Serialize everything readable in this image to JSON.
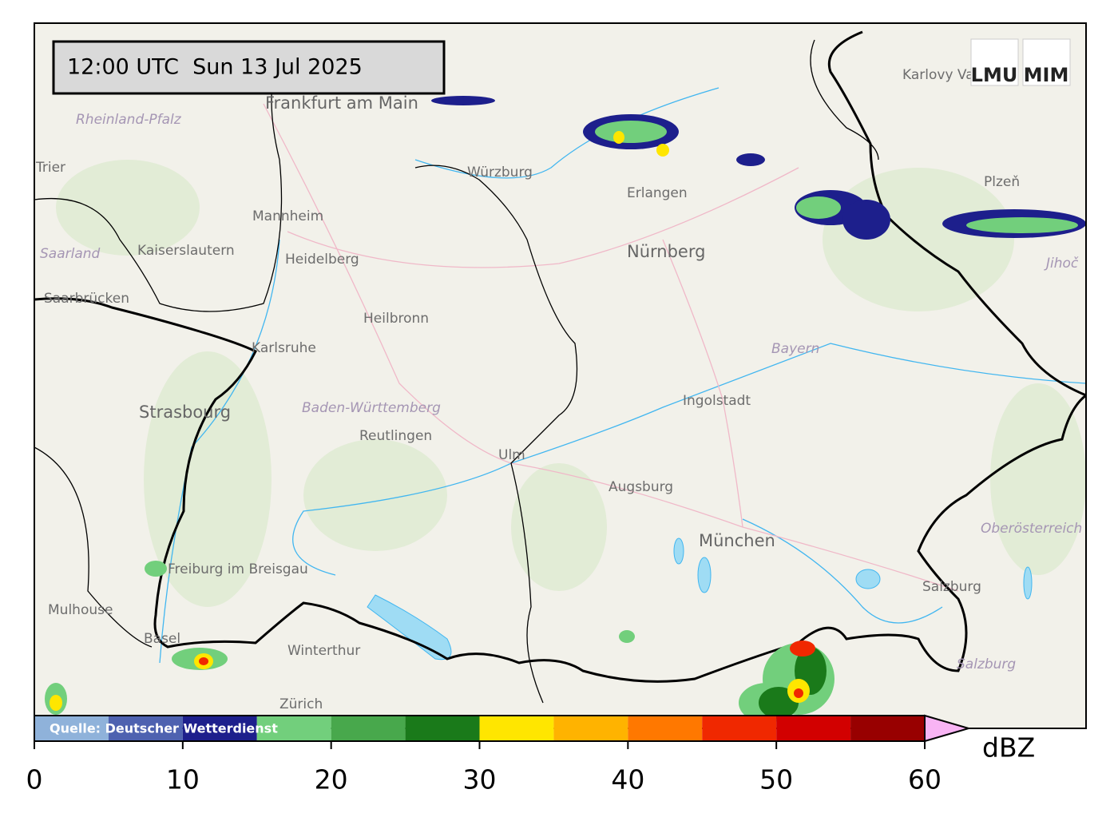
{
  "timestamp": "12:00 UTC  Sun 13 Jul 2025",
  "logos": [
    "LMU",
    "MIM"
  ],
  "source": "Quelle: Deutscher Wetterdienst",
  "places": [
    "Frankfurt am Main",
    "Rheinland-Pfalz",
    "Trier",
    "Mannheim",
    "Kaiserslautern",
    "Heidelberg",
    "Saarland",
    "Saarbrücken",
    "Karlsruhe",
    "Heilbronn",
    "Würzburg",
    "Erlangen",
    "Nürnberg",
    "Karlovy Vary",
    "Plzeň",
    "Jihoč",
    "Bayern",
    "Ingolstadt",
    "Strasbourg",
    "Baden-Württemberg",
    "Reutlingen",
    "Ulm",
    "Augsburg",
    "München",
    "Oberösterreich",
    "Freiburg im Breisgau",
    "Mulhouse",
    "Basel",
    "Winterthur",
    "Zürich",
    "Salzburg",
    "Salzburg"
  ],
  "colorbar": {
    "bounds": [
      0,
      5,
      10,
      15,
      20,
      25,
      30,
      35,
      40,
      45,
      50,
      55,
      60
    ],
    "colors": [
      "#8fb2da",
      "#4e62b0",
      "#1d1f8c",
      "#72cf7c",
      "#48a84c",
      "#1a7a1a",
      "#ffe600",
      "#ffb300",
      "#ff7800",
      "#f02800",
      "#d20000",
      "#980000"
    ],
    "extend_color": "#f8b4f4",
    "ticks": [
      0,
      10,
      20,
      30,
      40,
      50,
      60
    ],
    "unit": "dBZ"
  }
}
